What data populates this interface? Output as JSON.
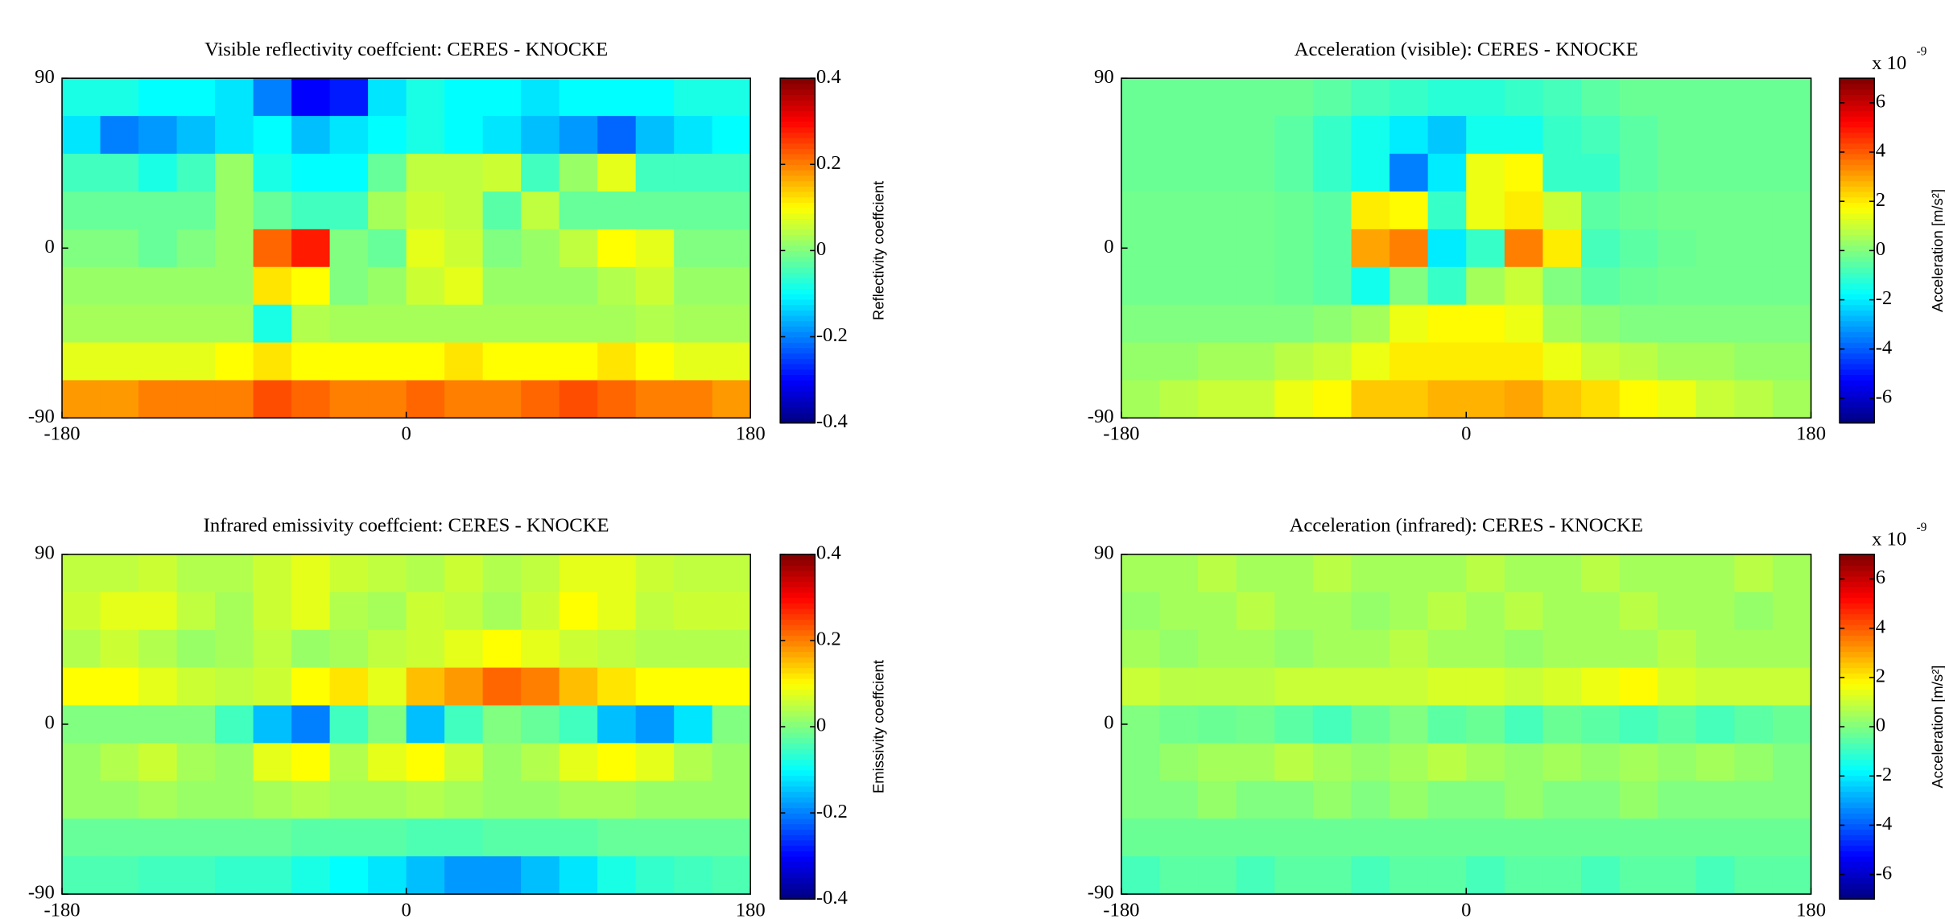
{
  "chart_data": [
    {
      "type": "heatmap",
      "title": "Visible reflectivity coeffcient: CERES - KNOCKE",
      "colormap": "jet",
      "xlim": [
        -180,
        180
      ],
      "xticks": [
        -180,
        0,
        180
      ],
      "ylim": [
        -90,
        90
      ],
      "yticks": [
        -90,
        0,
        90
      ],
      "x": [
        -170,
        -150,
        -130,
        -110,
        -90,
        -70,
        -50,
        -30,
        -10,
        10,
        30,
        50,
        70,
        90,
        110,
        130,
        150,
        170
      ],
      "y": [
        80,
        60,
        40,
        20,
        0,
        -20,
        -40,
        -60,
        -80
      ],
      "values": [
        [
          -0.08,
          -0.08,
          -0.1,
          -0.1,
          -0.12,
          -0.2,
          -0.3,
          -0.28,
          -0.12,
          -0.08,
          -0.1,
          -0.1,
          -0.12,
          -0.1,
          -0.1,
          -0.1,
          -0.08,
          -0.08
        ],
        [
          -0.12,
          -0.2,
          -0.18,
          -0.15,
          -0.12,
          -0.1,
          -0.15,
          -0.12,
          -0.1,
          -0.08,
          -0.1,
          -0.12,
          -0.15,
          -0.18,
          -0.22,
          -0.15,
          -0.12,
          -0.1
        ],
        [
          -0.05,
          -0.05,
          -0.08,
          -0.05,
          0.02,
          -0.08,
          -0.1,
          -0.1,
          -0.02,
          0.05,
          0.05,
          0.06,
          -0.05,
          0.02,
          0.08,
          -0.05,
          -0.05,
          -0.05
        ],
        [
          -0.02,
          -0.02,
          -0.02,
          -0.02,
          0.02,
          -0.02,
          -0.05,
          -0.05,
          0.03,
          0.06,
          0.05,
          -0.03,
          0.05,
          -0.02,
          -0.02,
          -0.02,
          -0.02,
          -0.02
        ],
        [
          0,
          0,
          -0.02,
          0,
          0.02,
          0.22,
          0.28,
          0,
          -0.02,
          0.08,
          0.06,
          0,
          0.02,
          0.05,
          0.1,
          0.08,
          0,
          0
        ],
        [
          0.02,
          0.02,
          0.02,
          0.02,
          0.02,
          0.12,
          0.1,
          0,
          0.02,
          0.06,
          0.08,
          0.02,
          0.02,
          0.02,
          0.04,
          0.06,
          0.02,
          0.02
        ],
        [
          0.03,
          0.03,
          0.03,
          0.03,
          0.03,
          -0.08,
          0.04,
          0.03,
          0.03,
          0.03,
          0.03,
          0.03,
          0.03,
          0.03,
          0.03,
          0.04,
          0.03,
          0.03
        ],
        [
          0.08,
          0.08,
          0.08,
          0.08,
          0.1,
          0.12,
          0.1,
          0.1,
          0.1,
          0.1,
          0.12,
          0.1,
          0.1,
          0.1,
          0.12,
          0.1,
          0.08,
          0.08
        ],
        [
          0.18,
          0.18,
          0.2,
          0.2,
          0.2,
          0.24,
          0.22,
          0.2,
          0.2,
          0.22,
          0.2,
          0.2,
          0.22,
          0.24,
          0.22,
          0.2,
          0.2,
          0.18
        ]
      ],
      "clim": [
        -0.4,
        0.4
      ],
      "colorbar_ticks": [
        -0.4,
        -0.2,
        0,
        0.2,
        0.4
      ],
      "colorbar_label": "Reflectivity coeffcient"
    },
    {
      "type": "heatmap",
      "title": "Acceleration (visible): CERES - KNOCKE",
      "colormap": "jet",
      "xlim": [
        -180,
        180
      ],
      "xticks": [
        -180,
        0,
        180
      ],
      "ylim": [
        -90,
        90
      ],
      "yticks": [
        -90,
        0,
        90
      ],
      "x": [
        -170,
        -150,
        -130,
        -110,
        -90,
        -70,
        -50,
        -30,
        -10,
        10,
        30,
        50,
        70,
        90,
        110,
        130,
        150,
        170
      ],
      "y": [
        80,
        60,
        40,
        20,
        0,
        -20,
        -40,
        -60,
        -80
      ],
      "values": [
        [
          -0.3,
          -0.3,
          -0.3,
          -0.3,
          -0.3,
          -0.5,
          -0.8,
          -1,
          -1.2,
          -1.2,
          -1,
          -0.8,
          -0.5,
          -0.3,
          -0.3,
          -0.3,
          -0.3,
          -0.3
        ],
        [
          -0.3,
          -0.3,
          -0.3,
          -0.3,
          -0.5,
          -1,
          -1.5,
          -2,
          -2.5,
          -1.5,
          -1.5,
          -1,
          -0.8,
          -0.5,
          -0.3,
          -0.3,
          -0.3,
          -0.3
        ],
        [
          -0.3,
          -0.3,
          -0.3,
          -0.3,
          -0.5,
          -1,
          -1.5,
          -3.5,
          -2,
          1.5,
          1.8,
          -1,
          -1,
          -0.5,
          -0.3,
          -0.3,
          -0.3,
          -0.3
        ],
        [
          -0.2,
          -0.2,
          -0.2,
          -0.2,
          -0.3,
          -0.5,
          2,
          1.8,
          -1,
          1.5,
          2,
          1,
          -0.5,
          -0.3,
          -0.2,
          -0.2,
          -0.2,
          -0.2
        ],
        [
          -0.2,
          -0.2,
          -0.2,
          -0.2,
          -0.3,
          -0.5,
          3,
          3.5,
          -2,
          -1,
          3.5,
          2,
          -0.8,
          -0.5,
          -0.3,
          -0.2,
          -0.2,
          -0.2
        ],
        [
          -0.2,
          -0.2,
          -0.2,
          -0.2,
          -0.3,
          -0.5,
          -1.5,
          0,
          -1,
          0.5,
          1,
          0,
          -0.5,
          -0.3,
          -0.2,
          -0.2,
          -0.2,
          -0.2
        ],
        [
          0,
          0,
          0,
          0,
          0,
          0.2,
          0.5,
          1.5,
          1.8,
          1.8,
          1.5,
          0.5,
          0.2,
          0,
          0,
          0,
          0,
          0
        ],
        [
          0.3,
          0.3,
          0.5,
          0.5,
          0.8,
          1,
          1.5,
          2,
          2,
          2,
          2,
          1.5,
          1,
          0.8,
          0.5,
          0.5,
          0.3,
          0.3
        ],
        [
          0.5,
          0.8,
          1,
          1,
          1.5,
          1.8,
          2.5,
          2.5,
          2.8,
          2.8,
          3,
          2.5,
          2.2,
          1.8,
          1.5,
          1,
          0.8,
          0.5
        ]
      ],
      "clim": [
        -7,
        7
      ],
      "colorbar_ticks": [
        -6,
        -4,
        -2,
        0,
        2,
        4,
        6
      ],
      "colorbar_label": "Acceleration [m/s²]",
      "colorbar_multiplier": "x 10",
      "colorbar_exponent": "-9"
    },
    {
      "type": "heatmap",
      "title": "Infrared emissivity coeffcient: CERES - KNOCKE",
      "colormap": "jet",
      "xlim": [
        -180,
        180
      ],
      "xticks": [
        -180,
        0,
        180
      ],
      "ylim": [
        -90,
        90
      ],
      "yticks": [
        -90,
        0,
        90
      ],
      "x": [
        -170,
        -150,
        -130,
        -110,
        -90,
        -70,
        -50,
        -30,
        -10,
        10,
        30,
        50,
        70,
        90,
        110,
        130,
        150,
        170
      ],
      "y": [
        80,
        60,
        40,
        20,
        0,
        -20,
        -40,
        -60,
        -80
      ],
      "values": [
        [
          0.05,
          0.05,
          0.06,
          0.04,
          0.04,
          0.06,
          0.08,
          0.06,
          0.05,
          0.04,
          0.06,
          0.04,
          0.05,
          0.08,
          0.08,
          0.06,
          0.05,
          0.05
        ],
        [
          0.06,
          0.08,
          0.08,
          0.05,
          0.03,
          0.06,
          0.08,
          0.04,
          0.03,
          0.06,
          0.05,
          0.03,
          0.06,
          0.1,
          0.08,
          0.05,
          0.06,
          0.06
        ],
        [
          0.04,
          0.06,
          0.04,
          0.02,
          0.03,
          0.05,
          0.02,
          0.03,
          0.05,
          0.06,
          0.08,
          0.1,
          0.08,
          0.06,
          0.05,
          0.04,
          0.04,
          0.04
        ],
        [
          0.1,
          0.1,
          0.08,
          0.06,
          0.05,
          0.06,
          0.1,
          0.12,
          0.08,
          0.15,
          0.18,
          0.22,
          0.2,
          0.15,
          0.12,
          0.1,
          0.1,
          0.1
        ],
        [
          0,
          0,
          0,
          0,
          -0.05,
          -0.15,
          -0.2,
          -0.05,
          0,
          -0.15,
          -0.05,
          0,
          -0.02,
          -0.05,
          -0.15,
          -0.18,
          -0.12,
          0
        ],
        [
          0.02,
          0.04,
          0.06,
          0.03,
          0.02,
          0.08,
          0.1,
          0.04,
          0.08,
          0.1,
          0.06,
          0.02,
          0.04,
          0.08,
          0.1,
          0.08,
          0.04,
          0.02
        ],
        [
          0.02,
          0.02,
          0.03,
          0.02,
          0.02,
          0.03,
          0.04,
          0.03,
          0.03,
          0.04,
          0.03,
          0.02,
          0.02,
          0.03,
          0.03,
          0.02,
          0.02,
          0.02
        ],
        [
          -0.02,
          -0.02,
          -0.02,
          -0.02,
          -0.02,
          -0.02,
          -0.03,
          -0.03,
          -0.03,
          -0.04,
          -0.04,
          -0.03,
          -0.03,
          -0.03,
          -0.02,
          -0.02,
          -0.02,
          -0.02
        ],
        [
          -0.04,
          -0.04,
          -0.05,
          -0.05,
          -0.06,
          -0.06,
          -0.08,
          -0.1,
          -0.12,
          -0.15,
          -0.18,
          -0.18,
          -0.15,
          -0.12,
          -0.08,
          -0.06,
          -0.05,
          -0.04
        ]
      ],
      "clim": [
        -0.4,
        0.4
      ],
      "colorbar_ticks": [
        -0.4,
        -0.2,
        0,
        0.2,
        0.4
      ],
      "colorbar_label": "Emissivity coeffcient"
    },
    {
      "type": "heatmap",
      "title": "Acceleration (infrared): CERES - KNOCKE",
      "colormap": "jet",
      "xlim": [
        -180,
        180
      ],
      "xticks": [
        -180,
        0,
        180
      ],
      "ylim": [
        -90,
        90
      ],
      "yticks": [
        -90,
        0,
        90
      ],
      "x": [
        -170,
        -150,
        -130,
        -110,
        -90,
        -70,
        -50,
        -30,
        -10,
        10,
        30,
        50,
        70,
        90,
        110,
        130,
        150,
        170
      ],
      "y": [
        80,
        60,
        40,
        20,
        0,
        -20,
        -40,
        -60,
        -80
      ],
      "values": [
        [
          0.5,
          0.5,
          0.8,
          0.5,
          0.5,
          0.8,
          0.5,
          0.5,
          0.5,
          0.8,
          0.5,
          0.5,
          0.8,
          0.5,
          0.5,
          0.5,
          0.8,
          0.5
        ],
        [
          0.3,
          0.5,
          0.5,
          0.8,
          0.5,
          0.5,
          0.3,
          0.5,
          0.8,
          0.5,
          0.8,
          0.5,
          0.5,
          0.8,
          0.5,
          0.5,
          0.3,
          0.5
        ],
        [
          0.5,
          0.3,
          0.5,
          0.5,
          0.3,
          0.5,
          0.5,
          0.8,
          0.5,
          0.5,
          0.3,
          0.5,
          0.5,
          0.5,
          0.8,
          0.5,
          0.5,
          0.5
        ],
        [
          1,
          0.8,
          0.8,
          0.8,
          1,
          1,
          1,
          1,
          1.2,
          1.2,
          1,
          1.2,
          1.5,
          1.8,
          1.2,
          1,
          1,
          1
        ],
        [
          0,
          -0.2,
          -0.3,
          -0.2,
          -0.5,
          -0.8,
          -0.3,
          0,
          -0.5,
          -0.3,
          -0.8,
          -0.3,
          -0.5,
          -0.8,
          -0.5,
          -0.8,
          -0.5,
          -0.3
        ],
        [
          0,
          0.3,
          0.5,
          0.5,
          0.8,
          0.5,
          0.3,
          0.5,
          0.8,
          0.5,
          0.3,
          0.5,
          0.3,
          0.5,
          0.3,
          0.5,
          0.3,
          0
        ],
        [
          0,
          0,
          0.3,
          0,
          0,
          0.3,
          0,
          0.3,
          0,
          0,
          0.3,
          0,
          0,
          0.3,
          0,
          0,
          0,
          0
        ],
        [
          -0.3,
          -0.3,
          -0.3,
          -0.3,
          -0.3,
          -0.3,
          -0.3,
          -0.3,
          -0.3,
          -0.3,
          -0.3,
          -0.3,
          -0.3,
          -0.3,
          -0.3,
          -0.3,
          -0.3,
          -0.3
        ],
        [
          -0.8,
          -0.5,
          -0.5,
          -0.8,
          -0.5,
          -0.5,
          -0.8,
          -0.5,
          -0.5,
          -0.8,
          -0.5,
          -0.5,
          -0.8,
          -0.5,
          -0.5,
          -0.8,
          -0.5,
          -0.5
        ]
      ],
      "clim": [
        -7,
        7
      ],
      "colorbar_ticks": [
        -6,
        -4,
        -2,
        0,
        2,
        4,
        6
      ],
      "colorbar_label": "Acceleration [m/s²]",
      "colorbar_multiplier": "x 10",
      "colorbar_exponent": "-9"
    }
  ]
}
